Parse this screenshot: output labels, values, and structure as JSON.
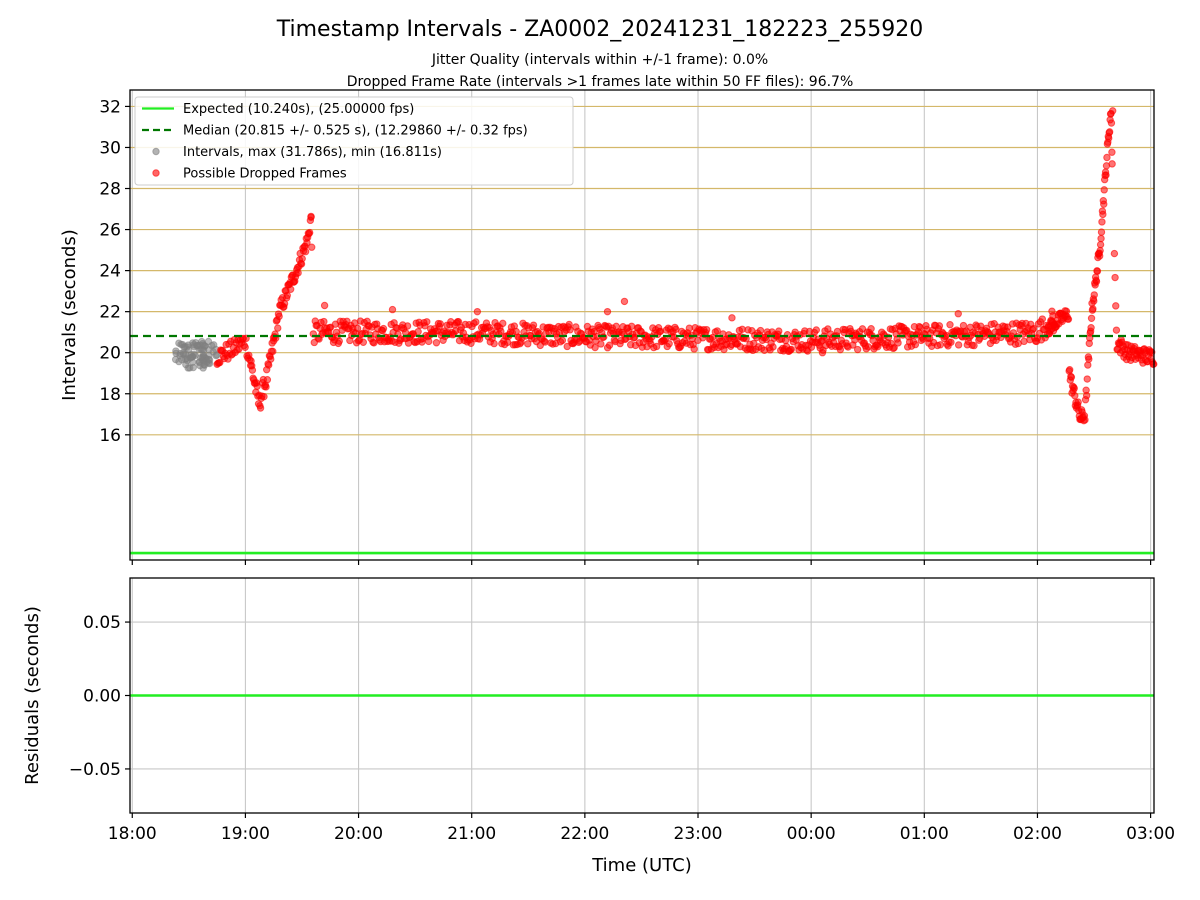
{
  "chart_data": [
    {
      "type": "scatter",
      "title": "Timestamp Intervals - ZA0002_20241231_182223_255920",
      "subtitle_1": "Jitter Quality (intervals within +/-1 frame): 0.0%",
      "subtitle_2": "Dropped Frame Rate (intervals >1 frames late within 50 FF files): 96.7%",
      "xlabel": "",
      "ylabel": "Intervals (seconds)",
      "x_ticks": [
        "18:00",
        "19:00",
        "20:00",
        "21:00",
        "22:00",
        "23:00",
        "00:00",
        "01:00",
        "02:00",
        "03:00"
      ],
      "y_ticks": [
        "16",
        "18",
        "20",
        "22",
        "24",
        "26",
        "28",
        "30",
        "32"
      ],
      "x_range_hours_since_18": [
        -0.02,
        9.03
      ],
      "ylim": [
        9.9,
        32.8
      ],
      "legend": {
        "placement": "upper-left",
        "entries": [
          "Expected (10.240s), (25.00000 fps)",
          "Median (20.815 +/- 0.525 s), (12.29860 +/- 0.32 fps)",
          "Intervals, max (31.786s), min (16.811s)",
          "Possible Dropped Frames"
        ]
      },
      "expected_interval_s": 10.24,
      "median_interval_s": 20.815,
      "max_interval_s": 31.786,
      "min_interval_s": 16.811,
      "colors": {
        "expected": "#22ee22",
        "median": "#007700",
        "intervals": "#808080",
        "dropped": "#ff0000",
        "hgrid_top": "#d4b86a",
        "vgrid": "#c8c8c8"
      },
      "series": [
        {
          "name": "Intervals, max (31.786s), min (16.811s)",
          "description_points": [
            [
              0.38,
              19.4
            ],
            [
              0.42,
              20.2
            ],
            [
              0.46,
              19.8
            ],
            [
              0.5,
              20.4
            ],
            [
              0.54,
              19.6
            ],
            [
              0.58,
              20.1
            ],
            [
              0.62,
              19.5
            ],
            [
              0.66,
              20.3
            ],
            [
              0.7,
              19.7
            ],
            [
              0.74,
              20.0
            ]
          ]
        },
        {
          "name": "Possible Dropped Frames",
          "key_points": [
            [
              0.75,
              19.8
            ],
            [
              0.9,
              20.2
            ],
            [
              1.0,
              20.6
            ],
            [
              1.05,
              19.4
            ],
            [
              1.12,
              17.5
            ],
            [
              1.2,
              19.0
            ],
            [
              1.3,
              22.0
            ],
            [
              1.45,
              24.0
            ],
            [
              1.55,
              25.5
            ],
            [
              1.58,
              26.6
            ],
            [
              1.6,
              21.0
            ],
            [
              2.0,
              21.0
            ],
            [
              3.0,
              21.0
            ],
            [
              4.0,
              20.8
            ],
            [
              5.0,
              20.7
            ],
            [
              6.0,
              20.6
            ],
            [
              7.0,
              20.8
            ],
            [
              8.0,
              21.0
            ],
            [
              8.2,
              21.8
            ],
            [
              8.3,
              18.5
            ],
            [
              8.38,
              16.8
            ],
            [
              8.42,
              17.0
            ],
            [
              8.48,
              22.0
            ],
            [
              8.55,
              25.0
            ],
            [
              8.62,
              30.0
            ],
            [
              8.65,
              31.8
            ],
            [
              8.7,
              20.5
            ],
            [
              8.8,
              20.0
            ],
            [
              9.0,
              19.8
            ]
          ]
        },
        {
          "name": "Expected (10.240s), (25.00000 fps)",
          "y": 10.24
        },
        {
          "name": "Median (20.815 +/- 0.525 s), (12.29860 +/- 0.32 fps)",
          "y": 20.815
        }
      ]
    },
    {
      "type": "line",
      "xlabel": "Time (UTC)",
      "ylabel": "Residuals (seconds)",
      "x_ticks": [
        "18:00",
        "19:00",
        "20:00",
        "21:00",
        "22:00",
        "23:00",
        "00:00",
        "01:00",
        "02:00",
        "03:00"
      ],
      "y_ticks": [
        "−0.05",
        "0.00",
        "0.05"
      ],
      "ylim": [
        -0.08,
        0.08
      ],
      "series": [
        {
          "name": "",
          "y": 0.0
        }
      ]
    }
  ]
}
